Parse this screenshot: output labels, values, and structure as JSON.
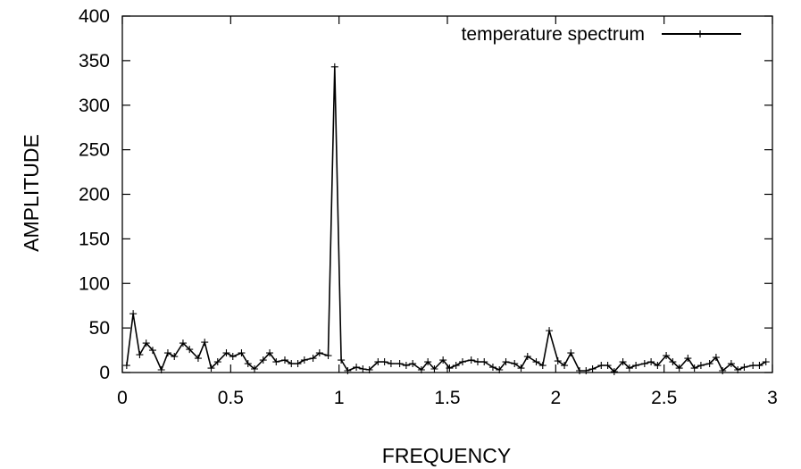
{
  "chart_data": {
    "type": "line",
    "title": "",
    "xlabel": "FREQUENCY",
    "ylabel": "AMPLITUDE",
    "xlim": [
      0,
      3
    ],
    "ylim": [
      0,
      400
    ],
    "xticks": [
      "0",
      "0.5",
      "1",
      "1.5",
      "2",
      "2.5",
      "3"
    ],
    "yticks": [
      "0",
      "50",
      "100",
      "150",
      "200",
      "250",
      "300",
      "350",
      "400"
    ],
    "grid": false,
    "legend_position": "top-right",
    "series": [
      {
        "name": "temperature spectrum",
        "color": "#000000",
        "marker": "plus",
        "x": [
          0.02,
          0.05,
          0.08,
          0.11,
          0.14,
          0.18,
          0.21,
          0.24,
          0.28,
          0.31,
          0.35,
          0.38,
          0.41,
          0.44,
          0.48,
          0.51,
          0.55,
          0.58,
          0.61,
          0.65,
          0.68,
          0.71,
          0.75,
          0.78,
          0.81,
          0.84,
          0.88,
          0.91,
          0.95,
          0.98,
          1.01,
          1.04,
          1.08,
          1.11,
          1.14,
          1.18,
          1.21,
          1.24,
          1.28,
          1.31,
          1.34,
          1.38,
          1.41,
          1.44,
          1.48,
          1.51,
          1.54,
          1.57,
          1.61,
          1.64,
          1.67,
          1.71,
          1.74,
          1.77,
          1.81,
          1.84,
          1.87,
          1.91,
          1.94,
          1.97,
          2.01,
          2.04,
          2.07,
          2.11,
          2.14,
          2.17,
          2.21,
          2.24,
          2.27,
          2.31,
          2.34,
          2.37,
          2.41,
          2.44,
          2.47,
          2.51,
          2.54,
          2.57,
          2.61,
          2.64,
          2.67,
          2.71,
          2.74,
          2.77,
          2.81,
          2.84,
          2.87,
          2.91,
          2.94,
          2.97
        ],
        "y": [
          8,
          66,
          20,
          33,
          25,
          3,
          22,
          18,
          33,
          26,
          16,
          34,
          5,
          12,
          22,
          18,
          22,
          10,
          4,
          14,
          22,
          12,
          14,
          10,
          10,
          14,
          16,
          22,
          19,
          343,
          14,
          2,
          6,
          4,
          3,
          12,
          12,
          10,
          10,
          8,
          10,
          3,
          12,
          4,
          14,
          5,
          8,
          12,
          14,
          12,
          12,
          6,
          3,
          12,
          10,
          5,
          18,
          12,
          8,
          47,
          13,
          8,
          22,
          2,
          2,
          4,
          8,
          8,
          1,
          12,
          5,
          8,
          10,
          12,
          8,
          19,
          12,
          5,
          16,
          5,
          8,
          10,
          17,
          2,
          10,
          3,
          6,
          8,
          8,
          12
        ]
      }
    ]
  }
}
